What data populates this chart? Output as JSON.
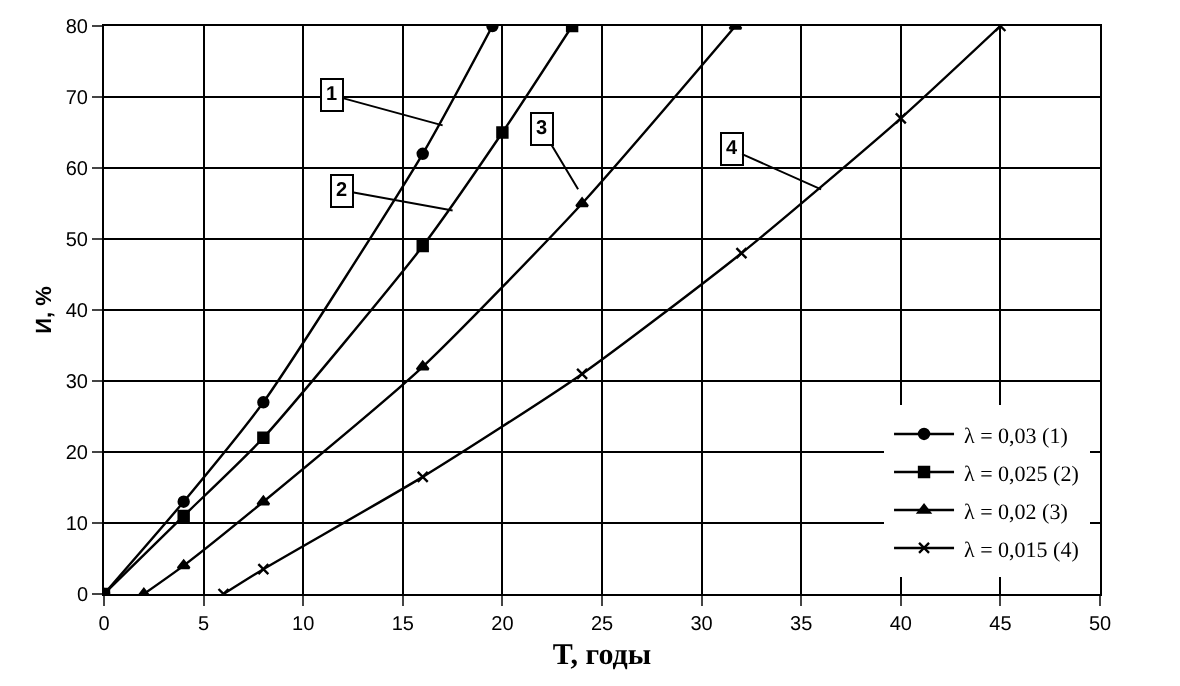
{
  "chart_data": {
    "type": "line",
    "xlabel": "T, годы",
    "ylabel": "И, %",
    "xlim": [
      0,
      50
    ],
    "ylim": [
      0,
      80
    ],
    "xticks": [
      0,
      5,
      10,
      15,
      20,
      25,
      30,
      35,
      40,
      45,
      50
    ],
    "yticks": [
      0,
      10,
      20,
      30,
      40,
      50,
      60,
      70,
      80
    ],
    "grid": true,
    "legend": "bottom right",
    "line_style": "solid",
    "series": [
      {
        "name": "λ = 0,03 (1)",
        "color": "#000000",
        "marker": "circle",
        "x": [
          0,
          4,
          8,
          16,
          19.5
        ],
        "values": [
          0,
          13,
          27,
          62,
          80
        ]
      },
      {
        "name": "λ = 0,025 (2)",
        "color": "#000000",
        "marker": "square",
        "x": [
          0,
          4,
          8,
          16,
          20,
          23.5
        ],
        "values": [
          0,
          11,
          22,
          49,
          65,
          80
        ]
      },
      {
        "name": "λ = 0,02 (3)",
        "color": "#000000",
        "marker": "triangle",
        "x": [
          2,
          4,
          8,
          16,
          24,
          31.7
        ],
        "values": [
          0,
          4,
          13,
          32,
          55,
          80
        ]
      },
      {
        "name": "λ = 0,015 (4)",
        "color": "#000000",
        "marker": "cross",
        "x": [
          6,
          8,
          16,
          24,
          32,
          40,
          45
        ],
        "values": [
          0,
          3.5,
          16.5,
          31,
          48,
          67,
          80
        ]
      }
    ],
    "annotations": [
      {
        "text": "1",
        "x": 17,
        "y": 66
      },
      {
        "text": "2",
        "x": 17.5,
        "y": 54
      },
      {
        "text": "3",
        "x": 23.8,
        "y": 57
      },
      {
        "text": "4",
        "x": 36,
        "y": 57
      }
    ]
  }
}
